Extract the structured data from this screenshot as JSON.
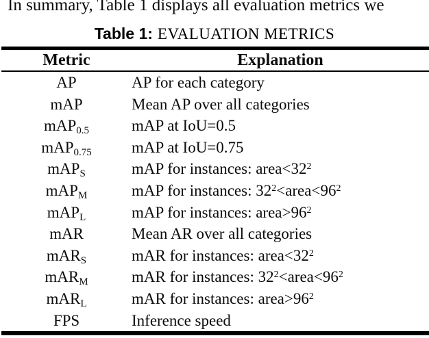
{
  "colors": {
    "background": "#ffffff",
    "text": "#000000",
    "rule": "#000000"
  },
  "page": {
    "context_line": "In summary, Table 1 displays all evaluation metrics we",
    "caption_label": "Table 1:",
    "caption_title": "EVALUATION METRICS"
  },
  "table": {
    "headers": [
      "Metric",
      "Explanation"
    ],
    "rows": [
      {
        "metric": [
          {
            "t": "AP"
          }
        ],
        "explanation": [
          {
            "t": "AP for each category"
          }
        ]
      },
      {
        "metric": [
          {
            "t": "mAP"
          }
        ],
        "explanation": [
          {
            "t": "Mean AP over all categories"
          }
        ]
      },
      {
        "metric": [
          {
            "t": "mAP"
          },
          {
            "t": "0.5",
            "s": "sub"
          }
        ],
        "explanation": [
          {
            "t": "mAP at IoU=0.5"
          }
        ]
      },
      {
        "metric": [
          {
            "t": "mAP"
          },
          {
            "t": "0.75",
            "s": "sub"
          }
        ],
        "explanation": [
          {
            "t": "mAP at IoU=0.75"
          }
        ]
      },
      {
        "metric": [
          {
            "t": "mAP"
          },
          {
            "t": "S",
            "s": "sub"
          }
        ],
        "explanation": [
          {
            "t": "mAP for instances: area<32"
          },
          {
            "t": "2",
            "s": "sup"
          }
        ]
      },
      {
        "metric": [
          {
            "t": "mAP"
          },
          {
            "t": "M",
            "s": "sub"
          }
        ],
        "explanation": [
          {
            "t": "mAP for instances: 32"
          },
          {
            "t": "2",
            "s": "sup"
          },
          {
            "t": "<area<96"
          },
          {
            "t": "2",
            "s": "sup"
          }
        ]
      },
      {
        "metric": [
          {
            "t": "mAP"
          },
          {
            "t": "L",
            "s": "sub"
          }
        ],
        "explanation": [
          {
            "t": "mAP for instances: area>96"
          },
          {
            "t": "2",
            "s": "sup"
          }
        ]
      },
      {
        "metric": [
          {
            "t": "mAR"
          }
        ],
        "explanation": [
          {
            "t": "Mean AR over all categories"
          }
        ]
      },
      {
        "metric": [
          {
            "t": "mAR"
          },
          {
            "t": "S",
            "s": "sub"
          }
        ],
        "explanation": [
          {
            "t": "mAR for instances: area<32"
          },
          {
            "t": "2",
            "s": "sup"
          }
        ]
      },
      {
        "metric": [
          {
            "t": "mAR"
          },
          {
            "t": "M",
            "s": "sub"
          }
        ],
        "explanation": [
          {
            "t": "mAR for instances: 32"
          },
          {
            "t": "2",
            "s": "sup"
          },
          {
            "t": "<area<96"
          },
          {
            "t": "2",
            "s": "sup"
          }
        ]
      },
      {
        "metric": [
          {
            "t": "mAR"
          },
          {
            "t": "L",
            "s": "sub"
          }
        ],
        "explanation": [
          {
            "t": "mAR for instances: area>96"
          },
          {
            "t": "2",
            "s": "sup"
          }
        ]
      },
      {
        "metric": [
          {
            "t": "FPS"
          }
        ],
        "explanation": [
          {
            "t": "Inference speed"
          }
        ]
      }
    ]
  }
}
